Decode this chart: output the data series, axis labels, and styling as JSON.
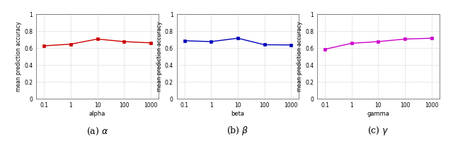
{
  "alpha": {
    "x": [
      0.1,
      1,
      10,
      100,
      1000
    ],
    "y": [
      0.625,
      0.645,
      0.705,
      0.675,
      0.66
    ],
    "color": "#cc0000",
    "xlabel": "alpha",
    "label": "(a) $\\alpha$"
  },
  "beta": {
    "x": [
      0.1,
      1,
      10,
      100,
      1000
    ],
    "y": [
      0.685,
      0.675,
      0.715,
      0.638,
      0.635
    ],
    "color": "#0000bb",
    "xlabel": "beta",
    "label": "(b) $\\beta$"
  },
  "gamma": {
    "x": [
      0.1,
      1,
      10,
      100,
      1000
    ],
    "y": [
      0.585,
      0.655,
      0.675,
      0.705,
      0.715
    ],
    "color": "#cc00cc",
    "xlabel": "gamma",
    "label": "(c) $\\gamma$"
  },
  "ylabel": "mean prediction accuracy",
  "ylim": [
    0,
    1.0
  ],
  "yticks": [
    0,
    0.2,
    0.4,
    0.6,
    0.8,
    1.0
  ],
  "ytick_labels": [
    "0",
    "0.2",
    "0.4",
    "0.6",
    "0.8",
    "1"
  ]
}
